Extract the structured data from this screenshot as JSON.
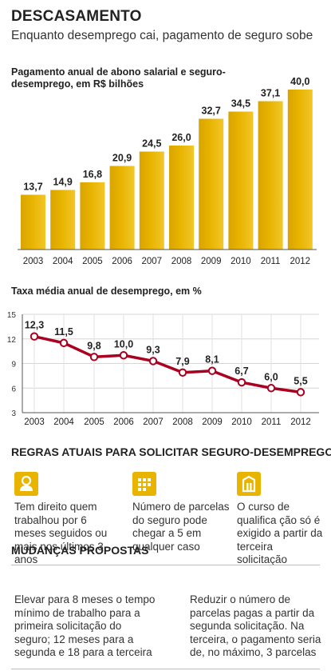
{
  "header": {
    "title": "DESCASAMENTO",
    "subtitle": "Enquanto desemprego cai, pagamento de seguro sobe"
  },
  "chart_data": [
    {
      "type": "bar",
      "title": "Pagamento anual de abono salarial e seguro-desemprego, em R$ bilhões",
      "categories": [
        "2003",
        "2004",
        "2005",
        "2006",
        "2007",
        "2008",
        "2009",
        "2010",
        "2011",
        "2012"
      ],
      "values": [
        13.7,
        14.9,
        16.8,
        20.9,
        24.5,
        26.0,
        32.7,
        34.5,
        37.1,
        40.0
      ],
      "value_labels": [
        "13,7",
        "14,9",
        "16,8",
        "20,9",
        "24,5",
        "26,0",
        "32,7",
        "34,5",
        "37,1",
        "40,0"
      ],
      "ylim": [
        0,
        40
      ],
      "color": "#e8b400"
    },
    {
      "type": "line",
      "title": "Taxa média anual de desemprego, em %",
      "categories": [
        "2003",
        "2004",
        "2005",
        "2006",
        "2007",
        "2008",
        "2009",
        "2010",
        "2011",
        "2012"
      ],
      "values": [
        12.3,
        11.5,
        9.8,
        10.0,
        9.3,
        7.9,
        8.1,
        6.7,
        6.0,
        5.5
      ],
      "value_labels": [
        "12,3",
        "11,5",
        "9,8",
        "10,0",
        "9,3",
        "7,9",
        "8,1",
        "6,7",
        "6,0",
        "5,5"
      ],
      "yticks": [
        3,
        6,
        9,
        12,
        15
      ],
      "ylim": [
        3,
        15
      ],
      "grid": true,
      "color": "#a8001e"
    }
  ],
  "rules": {
    "heading": "REGRAS ATUAIS PARA SOLICITAR SEGURO-DESEMPREGO",
    "items": [
      {
        "icon": "worker-icon",
        "text": "Tem direito quem trabalhou por 6 meses seguidos ou mais nos últimos 3 anos"
      },
      {
        "icon": "calendar-grid-icon",
        "text": "Número de parcelas do seguro pode chegar a 5 em qualquer caso"
      },
      {
        "icon": "building-icon",
        "text": "O curso de qualifica ção só é exigido a partir da terceira solicitação"
      }
    ]
  },
  "changes": {
    "heading": "MUDANÇAS PROPOSTAS",
    "items": [
      {
        "text": "Elevar para 8 meses o tempo mínimo de trabalho para a primeira solicitação do seguro; 12 meses para a segunda e 18 para a terceira"
      },
      {
        "text": "Reduzir o número de parcelas pagas a partir da segunda solicitação. Na terceira, o pagamento seria de, no máximo, 3 parcelas"
      }
    ]
  },
  "colors": {
    "accent": "#e8b400",
    "line": "#a8001e"
  }
}
